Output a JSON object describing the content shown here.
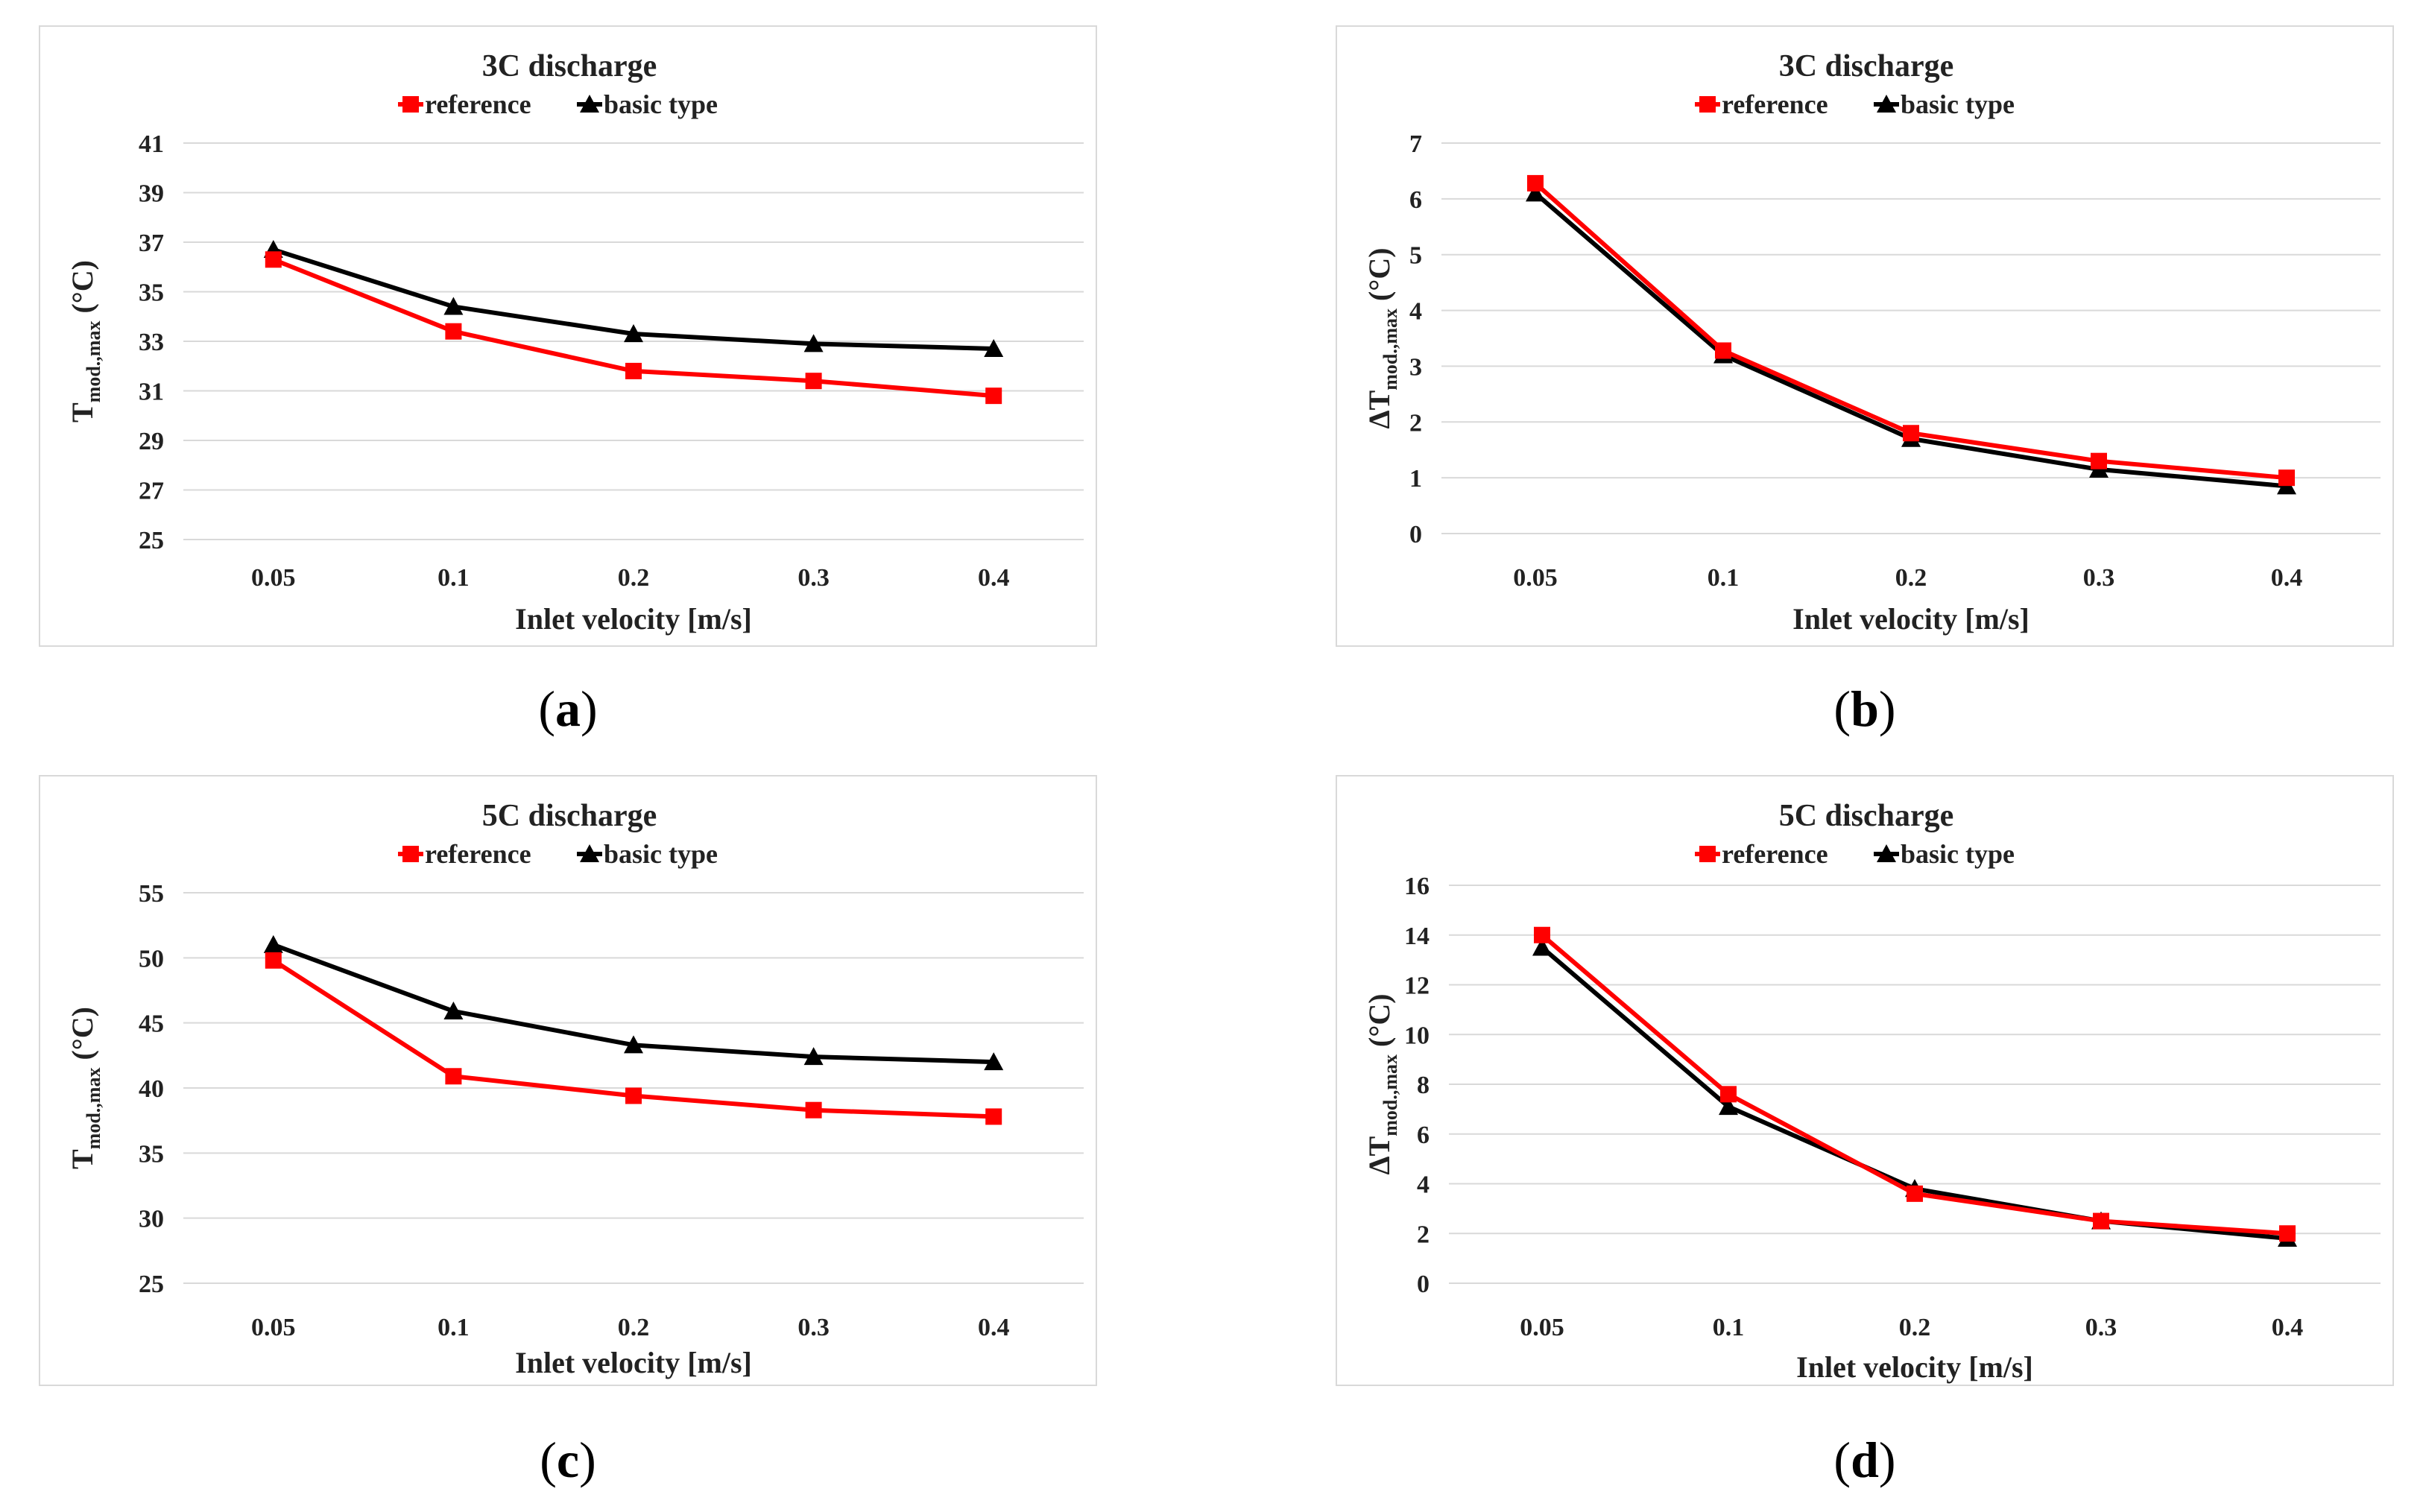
{
  "captions": [
    "a",
    "b",
    "c",
    "d"
  ],
  "colors": {
    "reference": "#ff0000",
    "basic_type": "#000000",
    "grid": "#d9d9d9",
    "border": "#d9d9d9"
  },
  "chart_data": [
    {
      "type": "line",
      "title": "3C discharge",
      "xlabel": "Inlet velocity [m/s]",
      "ylabel_main": "T",
      "ylabel_sub": "mod.,max",
      "ylabel_unit": " (°C)",
      "categories": [
        "0.05",
        "0.1",
        "0.2",
        "0.3",
        "0.4"
      ],
      "ylim": [
        25,
        41
      ],
      "yticks": [
        25,
        27,
        29,
        31,
        33,
        35,
        37,
        39,
        41
      ],
      "series": [
        {
          "name": "reference",
          "marker": "square",
          "values": [
            36.3,
            33.4,
            31.8,
            31.4,
            30.8
          ]
        },
        {
          "name": "basic type",
          "marker": "triangle",
          "values": [
            36.7,
            34.4,
            33.3,
            32.9,
            32.7
          ]
        }
      ]
    },
    {
      "type": "line",
      "title": "3C discharge",
      "xlabel": "Inlet velocity [m/s]",
      "ylabel_main": "ΔT",
      "ylabel_sub": "mod.,max",
      "ylabel_unit": " (°C)",
      "categories": [
        "0.05",
        "0.1",
        "0.2",
        "0.3",
        "0.4"
      ],
      "ylim": [
        0,
        7
      ],
      "yticks": [
        0,
        1,
        2,
        3,
        4,
        5,
        6,
        7
      ],
      "series": [
        {
          "name": "reference",
          "marker": "square",
          "values": [
            6.28,
            3.28,
            1.8,
            1.3,
            1.0
          ]
        },
        {
          "name": "basic type",
          "marker": "triangle",
          "values": [
            6.1,
            3.2,
            1.7,
            1.15,
            0.85
          ]
        }
      ]
    },
    {
      "type": "line",
      "title": "5C discharge",
      "xlabel": "Inlet velocity [m/s]",
      "ylabel_main": "T",
      "ylabel_sub": "mod.,max",
      "ylabel_unit": " (°C)",
      "categories": [
        "0.05",
        "0.1",
        "0.2",
        "0.3",
        "0.4"
      ],
      "ylim": [
        25,
        55
      ],
      "yticks": [
        25,
        30,
        35,
        40,
        45,
        50,
        55
      ],
      "series": [
        {
          "name": "reference",
          "marker": "square",
          "values": [
            49.8,
            40.9,
            39.4,
            38.3,
            37.8
          ]
        },
        {
          "name": "basic type",
          "marker": "triangle",
          "values": [
            51.0,
            45.9,
            43.3,
            42.4,
            42.0
          ]
        }
      ]
    },
    {
      "type": "line",
      "title": "5C discharge",
      "xlabel": "Inlet velocity [m/s]",
      "ylabel_main": "ΔT",
      "ylabel_sub": "mod.,max",
      "ylabel_unit": " (°C)",
      "categories": [
        "0.05",
        "0.1",
        "0.2",
        "0.3",
        "0.4"
      ],
      "ylim": [
        0,
        16
      ],
      "yticks": [
        0,
        2,
        4,
        6,
        8,
        10,
        12,
        14,
        16
      ],
      "series": [
        {
          "name": "reference",
          "marker": "square",
          "values": [
            14.0,
            7.6,
            3.6,
            2.5,
            2.0
          ]
        },
        {
          "name": "basic type",
          "marker": "triangle",
          "values": [
            13.5,
            7.1,
            3.8,
            2.5,
            1.8
          ]
        }
      ]
    }
  ]
}
